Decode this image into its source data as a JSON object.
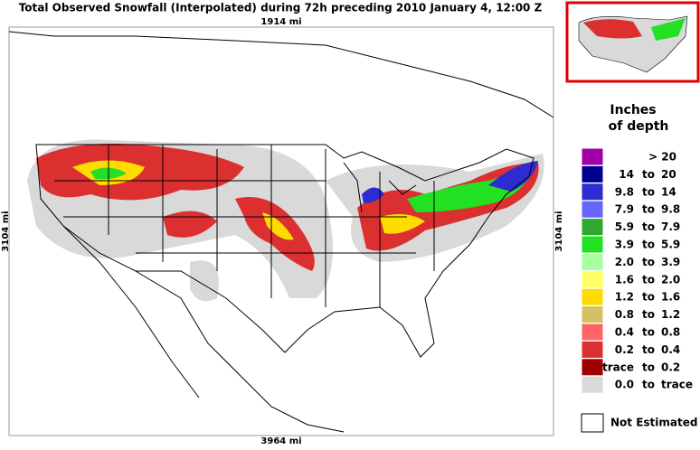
{
  "header": {
    "title": "Total Observed Snowfall (Interpolated) during 72h preceding 2010 January 4, 12:00 Z"
  },
  "map": {
    "top_scale": "1914 mi",
    "bottom_scale": "3964 mi",
    "left_scale": "3104 mi",
    "right_scale": "3104 mi"
  },
  "legend": {
    "title_line1": "Inches",
    "title_line2": "of depth",
    "items": [
      {
        "label": "> 20",
        "color": "#a000a8"
      },
      {
        "from": "14",
        "sep": "to",
        "to": "20",
        "color": "#000090"
      },
      {
        "from": "9.8",
        "sep": "to",
        "to": "14",
        "color": "#2c2cd0"
      },
      {
        "from": "7.9",
        "sep": "to",
        "to": "9.8",
        "color": "#6666ff"
      },
      {
        "from": "5.9",
        "sep": "to",
        "to": "7.9",
        "color": "#2ea82e"
      },
      {
        "from": "3.9",
        "sep": "to",
        "to": "5.9",
        "color": "#22e022"
      },
      {
        "from": "2.0",
        "sep": "to",
        "to": "3.9",
        "color": "#a8ffa0"
      },
      {
        "from": "1.6",
        "sep": "to",
        "to": "2.0",
        "color": "#ffff66"
      },
      {
        "from": "1.2",
        "sep": "to",
        "to": "1.6",
        "color": "#ffdc00"
      },
      {
        "from": "0.8",
        "sep": "to",
        "to": "1.2",
        "color": "#d2c264"
      },
      {
        "from": "0.4",
        "sep": "to",
        "to": "0.8",
        "color": "#ff6464"
      },
      {
        "from": "0.2",
        "sep": "to",
        "to": "0.4",
        "color": "#dc3030"
      },
      {
        "from": "trace",
        "sep": "to",
        "to": "0.2",
        "color": "#a00000"
      },
      {
        "from": "0.0",
        "sep": "to",
        "to": "trace",
        "color": "#d9d9d9"
      }
    ],
    "not_estimated": "Not Estimated"
  }
}
